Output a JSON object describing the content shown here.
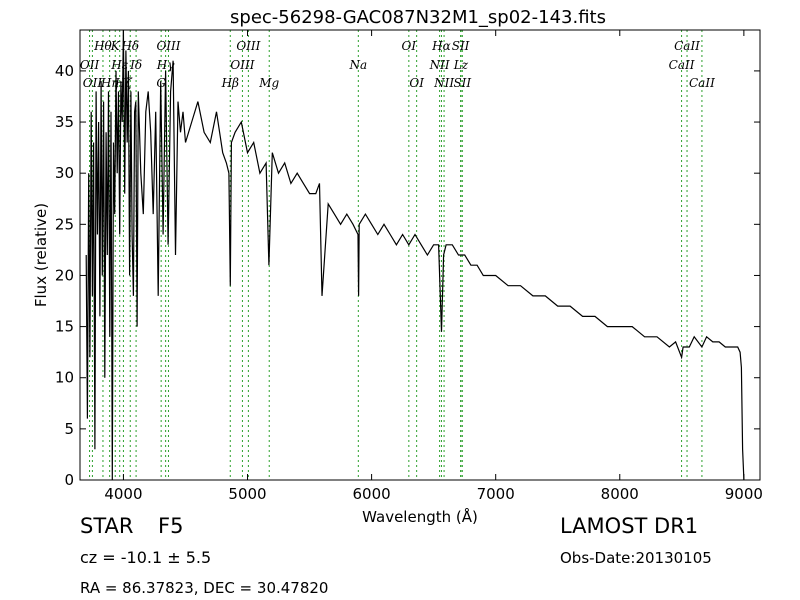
{
  "chart_data": {
    "type": "line",
    "title": "spec-56298-GAC087N32M1_sp02-143.fits",
    "xlabel": "Wavelength (Å)",
    "ylabel": "Flux (relative)",
    "xlim": [
      3650,
      9130
    ],
    "ylim": [
      0,
      44
    ],
    "xticks": [
      4000,
      5000,
      6000,
      7000,
      8000,
      9000
    ],
    "yticks": [
      0,
      5,
      10,
      15,
      20,
      25,
      30,
      35,
      40
    ],
    "grid": false,
    "line_color": "#000000",
    "marker_color": "#2ca02c",
    "series": [
      {
        "x": [
          3700,
          3710,
          3720,
          3730,
          3740,
          3750,
          3760,
          3770,
          3780,
          3790,
          3800,
          3810,
          3820,
          3830,
          3840,
          3850,
          3860,
          3870,
          3880,
          3890,
          3900,
          3910,
          3920,
          3930,
          3940,
          3950,
          3960,
          3970,
          3980,
          3990,
          4000,
          4010,
          4020,
          4030,
          4040,
          4050,
          4060,
          4070,
          4080,
          4090,
          4100,
          4110,
          4120,
          4140,
          4160,
          4180,
          4200,
          4220,
          4240,
          4260,
          4280,
          4300,
          4320,
          4340,
          4360,
          4380,
          4400,
          4420,
          4440,
          4460,
          4480,
          4500,
          4550,
          4600,
          4650,
          4700,
          4750,
          4800,
          4830,
          4850,
          4861,
          4870,
          4900,
          4950,
          5000,
          5050,
          5100,
          5150,
          5172,
          5200,
          5250,
          5300,
          5350,
          5400,
          5450,
          5500,
          5550,
          5580,
          5600,
          5650,
          5700,
          5750,
          5800,
          5850,
          5890,
          5895,
          5900,
          5950,
          6000,
          6050,
          6100,
          6150,
          6200,
          6250,
          6300,
          6350,
          6400,
          6450,
          6500,
          6540,
          6563,
          6580,
          6600,
          6650,
          6700,
          6750,
          6800,
          6850,
          6900,
          6950,
          7000,
          7100,
          7200,
          7300,
          7400,
          7500,
          7600,
          7700,
          7800,
          7900,
          8000,
          8100,
          8200,
          8300,
          8400,
          8450,
          8498,
          8510,
          8542,
          8560,
          8600,
          8662,
          8700,
          8750,
          8800,
          8850,
          8900,
          8950,
          8970,
          8980,
          8990,
          9000
        ],
        "values": [
          22,
          6,
          30,
          12,
          36,
          18,
          33,
          3,
          38,
          24,
          35,
          16,
          39,
          20,
          37,
          10,
          34,
          22,
          38,
          14,
          36,
          0,
          33,
          26,
          40,
          30,
          38,
          24,
          39,
          35,
          44,
          28,
          42,
          33,
          40,
          20,
          38,
          24,
          18,
          36,
          37,
          15,
          38,
          30,
          26,
          36,
          38,
          34,
          26,
          36,
          18,
          39,
          24,
          40,
          23,
          38,
          41,
          22,
          37,
          34,
          36,
          33,
          35,
          37,
          34,
          33,
          36,
          32,
          31,
          30,
          19,
          33,
          34,
          35,
          32,
          33,
          30,
          31,
          21,
          32,
          30,
          31,
          29,
          30,
          29,
          28,
          28,
          29,
          18,
          27,
          26,
          25,
          26,
          25,
          24,
          18,
          25,
          26,
          25,
          24,
          25,
          24,
          23,
          24,
          23,
          24,
          23,
          22,
          23,
          23,
          14.5,
          22,
          23,
          23,
          22,
          22,
          21,
          21,
          20,
          20,
          20,
          19,
          19,
          18,
          18,
          17,
          17,
          16,
          16,
          15,
          15,
          15,
          14,
          14,
          13,
          13.5,
          12,
          13,
          13,
          13,
          14,
          13,
          14,
          13.5,
          13.5,
          13,
          13,
          13,
          12.5,
          11,
          3,
          0
        ]
      }
    ],
    "lines_top": [
      {
        "x": 3727,
        "label": "OII",
        "row": 1
      },
      {
        "x": 3750,
        "label": "OII",
        "row": 2
      },
      {
        "x": 3835,
        "label": "Hθ",
        "row": 0
      },
      {
        "x": 3889,
        "label": "Hη",
        "row": 2
      },
      {
        "x": 3934,
        "label": "K",
        "row": 0
      },
      {
        "x": 3970,
        "label": "Hε",
        "row": 1
      },
      {
        "x": 4000,
        "label": "Hζ",
        "row": 2
      },
      {
        "x": 4055,
        "label": "Hδ",
        "row": 0
      },
      {
        "x": 4102,
        "label": "Iδ",
        "row": 1
      },
      {
        "x": 4304,
        "label": "G",
        "row": 3
      },
      {
        "x": 4340,
        "label": "Hγ",
        "row": 1
      },
      {
        "x": 4363,
        "label": "OIII",
        "row": 0
      },
      {
        "x": 4861,
        "label": "Hβ",
        "row": 2
      },
      {
        "x": 4959,
        "label": "OIII",
        "row": 1
      },
      {
        "x": 5007,
        "label": "OIII",
        "row": 0
      },
      {
        "x": 5175,
        "label": "Mg",
        "row": 2
      },
      {
        "x": 5893,
        "label": "Na",
        "row": 1
      },
      {
        "x": 6300,
        "label": "OI",
        "row": 0
      },
      {
        "x": 6363,
        "label": "OI",
        "row": 2
      },
      {
        "x": 6548,
        "label": "NII",
        "row": 1
      },
      {
        "x": 6563,
        "label": "Hα",
        "row": 0
      },
      {
        "x": 6584,
        "label": "NII",
        "row": 2
      },
      {
        "x": 6717,
        "label": "SII",
        "row": 0
      },
      {
        "x": 6720,
        "label": "Lz",
        "row": 1
      },
      {
        "x": 6731,
        "label": "SII",
        "row": 2
      },
      {
        "x": 8498,
        "label": "CaII",
        "row": 1
      },
      {
        "x": 8542,
        "label": "CaII",
        "row": 0
      },
      {
        "x": 8662,
        "label": "CaII",
        "row": 2
      }
    ]
  },
  "info": {
    "class_label": "STAR",
    "subclass_label": "F5",
    "survey": "LAMOST DR1",
    "redshift": "cz = -10.1 ± 5.5",
    "obs_date": "Obs-Date:20130105",
    "coords": "RA = 86.37823, DEC = 30.47820"
  }
}
